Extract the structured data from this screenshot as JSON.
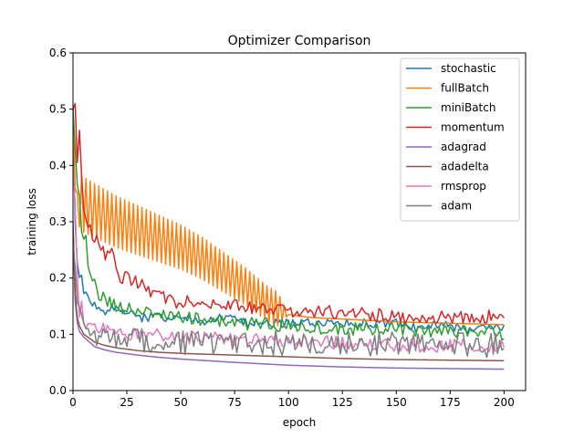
{
  "chart_data": {
    "type": "line",
    "title": "Optimizer Comparison",
    "xlabel": "epoch",
    "ylabel": "training loss",
    "xlim": [
      0,
      210
    ],
    "ylim": [
      0,
      0.6
    ],
    "xticks": [
      0,
      25,
      50,
      75,
      100,
      125,
      150,
      175,
      200
    ],
    "yticks": [
      0.0,
      0.1,
      0.2,
      0.3,
      0.4,
      0.5,
      0.6
    ],
    "legend_position": "top-right",
    "grid": false,
    "series": [
      {
        "name": "stochastic",
        "color": "#1f77b4",
        "x": [
          0,
          1,
          2,
          3,
          4,
          5,
          6,
          7,
          8,
          10,
          12,
          15,
          20,
          25,
          30,
          40,
          50,
          60,
          70,
          80,
          90,
          100,
          110,
          120,
          130,
          140,
          150,
          160,
          170,
          180,
          190,
          200
        ],
        "y": [
          0.5,
          0.3,
          0.22,
          0.2,
          0.21,
          0.18,
          0.17,
          0.16,
          0.15,
          0.15,
          0.14,
          0.14,
          0.15,
          0.14,
          0.13,
          0.13,
          0.13,
          0.12,
          0.13,
          0.12,
          0.12,
          0.12,
          0.12,
          0.12,
          0.12,
          0.12,
          0.12,
          0.11,
          0.12,
          0.11,
          0.11,
          0.11
        ],
        "jitter": 0.008
      },
      {
        "name": "fullBatch",
        "color": "#ff7f0e",
        "x": [
          0,
          1,
          3,
          5,
          10,
          20,
          30,
          40,
          50,
          60,
          70,
          80,
          90,
          100,
          110,
          120,
          130,
          140,
          150,
          160,
          170,
          180,
          190,
          200
        ],
        "y": [
          0.5,
          0.36,
          0.34,
          0.33,
          0.32,
          0.3,
          0.285,
          0.27,
          0.255,
          0.235,
          0.21,
          0.185,
          0.155,
          0.135,
          0.13,
          0.128,
          0.126,
          0.124,
          0.122,
          0.121,
          0.12,
          0.119,
          0.118,
          0.117
        ],
        "oscillation": [
          0.05,
          0.0
        ]
      },
      {
        "name": "miniBatch",
        "color": "#2ca02c",
        "x": [
          0,
          1,
          2,
          3,
          4,
          5,
          6,
          7,
          8,
          10,
          12,
          15,
          20,
          30,
          50,
          75,
          100,
          125,
          150,
          175,
          200
        ],
        "y": [
          0.5,
          0.43,
          0.37,
          0.35,
          0.28,
          0.27,
          0.27,
          0.22,
          0.2,
          0.19,
          0.17,
          0.16,
          0.15,
          0.14,
          0.13,
          0.12,
          0.115,
          0.11,
          0.11,
          0.105,
          0.1
        ],
        "jitter": 0.012
      },
      {
        "name": "momentum",
        "color": "#d62728",
        "x": [
          0,
          1,
          2,
          3,
          4,
          5,
          6,
          7,
          8,
          10,
          12,
          15,
          18,
          20,
          22,
          25,
          30,
          35,
          40,
          45,
          50,
          60,
          70,
          80,
          90,
          100,
          110,
          120,
          130,
          140,
          150,
          160,
          170,
          180,
          190,
          200
        ],
        "y": [
          0.5,
          0.51,
          0.4,
          0.47,
          0.38,
          0.33,
          0.31,
          0.3,
          0.29,
          0.27,
          0.26,
          0.24,
          0.25,
          0.21,
          0.2,
          0.2,
          0.19,
          0.18,
          0.17,
          0.16,
          0.155,
          0.16,
          0.15,
          0.15,
          0.145,
          0.14,
          0.14,
          0.14,
          0.14,
          0.135,
          0.13,
          0.13,
          0.13,
          0.13,
          0.13,
          0.14
        ],
        "jitter": 0.012
      },
      {
        "name": "adagrad",
        "color": "#9467bd",
        "x": [
          0,
          1,
          2,
          3,
          5,
          8,
          10,
          15,
          20,
          30,
          40,
          50,
          75,
          100,
          125,
          150,
          175,
          200
        ],
        "y": [
          0.29,
          0.16,
          0.12,
          0.105,
          0.095,
          0.085,
          0.078,
          0.072,
          0.068,
          0.063,
          0.059,
          0.056,
          0.05,
          0.045,
          0.042,
          0.04,
          0.039,
          0.038
        ],
        "jitter": 0
      },
      {
        "name": "adadelta",
        "color": "#8c564b",
        "x": [
          0,
          1,
          2,
          3,
          5,
          8,
          10,
          15,
          20,
          30,
          40,
          50,
          75,
          100,
          125,
          150,
          175,
          200
        ],
        "y": [
          0.3,
          0.17,
          0.13,
          0.115,
          0.1,
          0.092,
          0.086,
          0.08,
          0.076,
          0.071,
          0.068,
          0.066,
          0.063,
          0.06,
          0.057,
          0.055,
          0.054,
          0.053
        ],
        "jitter": 0
      },
      {
        "name": "rmsprop",
        "color": "#e377c2",
        "x": [
          0,
          1,
          2,
          3,
          4,
          5,
          6,
          8,
          10,
          15,
          20,
          30,
          50,
          75,
          100,
          125,
          150,
          175,
          200
        ],
        "y": [
          0.4,
          0.33,
          0.2,
          0.14,
          0.16,
          0.13,
          0.12,
          0.12,
          0.11,
          0.11,
          0.1,
          0.1,
          0.095,
          0.09,
          0.09,
          0.085,
          0.08,
          0.08,
          0.078
        ],
        "jitter": 0.012
      },
      {
        "name": "adam",
        "color": "#7f7f7f",
        "x": [
          0,
          1,
          2,
          3,
          4,
          5,
          6,
          8,
          10,
          15,
          20,
          30,
          50,
          75,
          100,
          125,
          150,
          175,
          200
        ],
        "y": [
          0.26,
          0.22,
          0.15,
          0.13,
          0.12,
          0.11,
          0.1,
          0.1,
          0.095,
          0.09,
          0.09,
          0.088,
          0.086,
          0.085,
          0.084,
          0.083,
          0.082,
          0.082,
          0.08
        ],
        "jitter": 0.022
      }
    ]
  }
}
